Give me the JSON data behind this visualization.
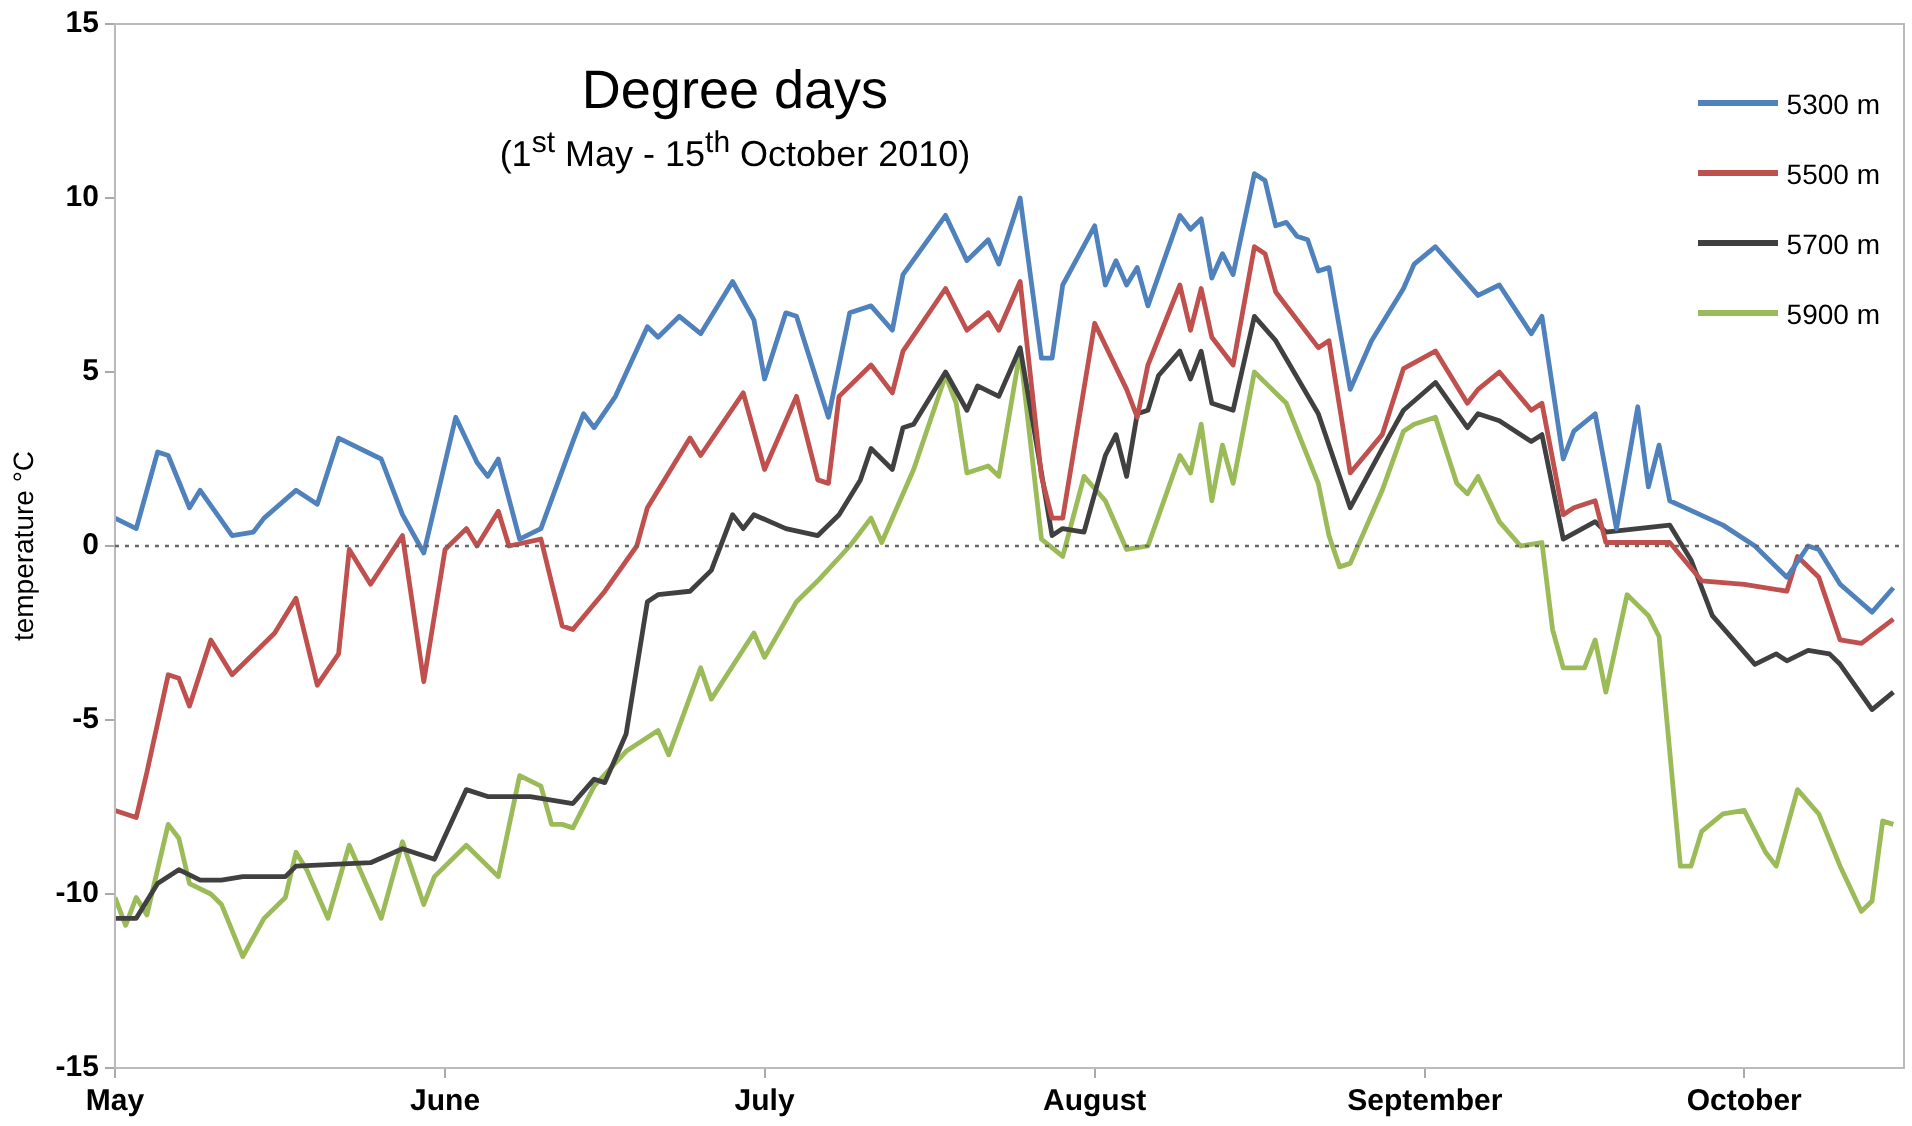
{
  "chart_data": {
    "type": "line",
    "title": "Degree days",
    "subtitle": "(1$^{st}$ May - 15$^{th}$ October 2010)",
    "ylabel": "temperature °C",
    "xlim": [
      "2010-05-01",
      "2010-10-16"
    ],
    "xticks": [
      {
        "value": "2010-05-01",
        "label": "May"
      },
      {
        "value": "2010-06-01",
        "label": "June"
      },
      {
        "value": "2010-07-01",
        "label": "July"
      },
      {
        "value": "2010-08-01",
        "label": "August"
      },
      {
        "value": "2010-09-01",
        "label": "September"
      },
      {
        "value": "2010-10-01",
        "label": "October"
      }
    ],
    "ylim": [
      -15,
      15
    ],
    "yticks": [
      -15,
      -10,
      -5,
      0,
      5,
      10,
      15
    ],
    "legend": "top right",
    "ref_lines": [
      {
        "axis": "y",
        "value": 0,
        "color": "#666666",
        "line_style": "dotted"
      }
    ],
    "series": [
      {
        "name": "5300 m",
        "color": "#4f81bd",
        "x": [
          "2010-05-01",
          "2010-05-03",
          "2010-05-05",
          "2010-05-06",
          "2010-05-08",
          "2010-05-09",
          "2010-05-12",
          "2010-05-14",
          "2010-05-15",
          "2010-05-18",
          "2010-05-20",
          "2010-05-22",
          "2010-05-26",
          "2010-05-28",
          "2010-05-30",
          "2010-06-02",
          "2010-06-04",
          "2010-06-05",
          "2010-06-06",
          "2010-06-08",
          "2010-06-10",
          "2010-06-13",
          "2010-06-14",
          "2010-06-15",
          "2010-06-17",
          "2010-06-20",
          "2010-06-21",
          "2010-06-23",
          "2010-06-25",
          "2010-06-28",
          "2010-06-30",
          "2010-07-01",
          "2010-07-03",
          "2010-07-04",
          "2010-07-07",
          "2010-07-09",
          "2010-07-11",
          "2010-07-13",
          "2010-07-14",
          "2010-07-18",
          "2010-07-20",
          "2010-07-22",
          "2010-07-23",
          "2010-07-25",
          "2010-07-27",
          "2010-07-28",
          "2010-07-29",
          "2010-08-01",
          "2010-08-02",
          "2010-08-03",
          "2010-08-04",
          "2010-08-05",
          "2010-08-06",
          "2010-08-09",
          "2010-08-10",
          "2010-08-11",
          "2010-08-12",
          "2010-08-13",
          "2010-08-14",
          "2010-08-16",
          "2010-08-17",
          "2010-08-18",
          "2010-08-19",
          "2010-08-20",
          "2010-08-21",
          "2010-08-22",
          "2010-08-23",
          "2010-08-25",
          "2010-08-27",
          "2010-08-30",
          "2010-08-31",
          "2010-09-02",
          "2010-09-06",
          "2010-09-08",
          "2010-09-11",
          "2010-09-12",
          "2010-09-14",
          "2010-09-15",
          "2010-09-17",
          "2010-09-19",
          "2010-09-21",
          "2010-09-22",
          "2010-09-23",
          "2010-09-24",
          "2010-09-29",
          "2010-10-02",
          "2010-10-05",
          "2010-10-07",
          "2010-10-08",
          "2010-10-10",
          "2010-10-13",
          "2010-10-15"
        ],
        "values": [
          0.8,
          0.5,
          2.7,
          2.6,
          1.1,
          1.6,
          0.3,
          0.4,
          0.8,
          1.6,
          1.2,
          3.1,
          2.5,
          0.9,
          -0.2,
          3.7,
          2.4,
          2.0,
          2.5,
          0.2,
          0.5,
          3.0,
          3.8,
          3.4,
          4.3,
          6.3,
          6.0,
          6.6,
          6.1,
          7.6,
          6.5,
          4.8,
          6.7,
          6.6,
          3.7,
          6.7,
          6.9,
          6.2,
          7.8,
          9.5,
          8.2,
          8.8,
          8.1,
          10.0,
          5.4,
          5.4,
          7.5,
          9.2,
          7.5,
          8.2,
          7.5,
          8.0,
          6.9,
          9.5,
          9.1,
          9.4,
          7.7,
          8.4,
          7.8,
          10.7,
          10.5,
          9.2,
          9.3,
          8.9,
          8.8,
          7.9,
          8.0,
          4.5,
          5.9,
          7.4,
          8.1,
          8.6,
          7.2,
          7.5,
          6.1,
          6.6,
          2.5,
          3.3,
          3.8,
          0.5,
          4.0,
          1.7,
          2.9,
          1.3,
          0.6,
          0,
          -0.9,
          0,
          -0.1,
          -1.1,
          -1.9,
          -1.2
        ]
      },
      {
        "name": "5500 m",
        "color": "#c0504d",
        "x": [
          "2010-05-01",
          "2010-05-03",
          "2010-05-04",
          "2010-05-06",
          "2010-05-07",
          "2010-05-08",
          "2010-05-10",
          "2010-05-12",
          "2010-05-15",
          "2010-05-16",
          "2010-05-18",
          "2010-05-20",
          "2010-05-22",
          "2010-05-23",
          "2010-05-25",
          "2010-05-28",
          "2010-05-30",
          "2010-06-01",
          "2010-06-03",
          "2010-06-04",
          "2010-06-06",
          "2010-06-07",
          "2010-06-10",
          "2010-06-12",
          "2010-06-13",
          "2010-06-16",
          "2010-06-19",
          "2010-06-20",
          "2010-06-24",
          "2010-06-25",
          "2010-06-29",
          "2010-07-01",
          "2010-07-04",
          "2010-07-06",
          "2010-07-07",
          "2010-07-08",
          "2010-07-11",
          "2010-07-13",
          "2010-07-14",
          "2010-07-18",
          "2010-07-20",
          "2010-07-22",
          "2010-07-23",
          "2010-07-25",
          "2010-07-27",
          "2010-07-28",
          "2010-07-29",
          "2010-08-01",
          "2010-08-04",
          "2010-08-05",
          "2010-08-06",
          "2010-08-09",
          "2010-08-10",
          "2010-08-11",
          "2010-08-12",
          "2010-08-14",
          "2010-08-16",
          "2010-08-17",
          "2010-08-18",
          "2010-08-22",
          "2010-08-23",
          "2010-08-25",
          "2010-08-28",
          "2010-08-30",
          "2010-09-02",
          "2010-09-05",
          "2010-09-06",
          "2010-09-08",
          "2010-09-11",
          "2010-09-12",
          "2010-09-14",
          "2010-09-15",
          "2010-09-17",
          "2010-09-18",
          "2010-09-24",
          "2010-09-27",
          "2010-10-01",
          "2010-10-05",
          "2010-10-06",
          "2010-10-08",
          "2010-10-10",
          "2010-10-12",
          "2010-10-15"
        ],
        "values": [
          -7.6,
          -7.8,
          -6.5,
          -3.7,
          -3.8,
          -4.6,
          -2.7,
          -3.7,
          -2.8,
          -2.5,
          -1.5,
          -4.0,
          -3.1,
          -0.1,
          -1.1,
          0.3,
          -3.9,
          -0.1,
          0.5,
          0,
          1.0,
          0,
          0.2,
          -2.3,
          -2.4,
          -1.3,
          0,
          1.1,
          3.1,
          2.6,
          4.4,
          2.2,
          4.3,
          1.9,
          1.8,
          4.3,
          5.2,
          4.4,
          5.6,
          7.4,
          6.2,
          6.7,
          6.2,
          7.6,
          2.0,
          0.8,
          0.8,
          6.4,
          4.5,
          3.7,
          5.2,
          7.5,
          6.2,
          7.4,
          6.0,
          5.2,
          8.6,
          8.4,
          7.3,
          5.7,
          5.9,
          2.1,
          3.2,
          5.1,
          5.6,
          4.1,
          4.5,
          5.0,
          3.9,
          4.1,
          0.9,
          1.1,
          1.3,
          0.1,
          0.1,
          -1.0,
          -1.1,
          -1.3,
          -0.3,
          -0.9,
          -2.7,
          -2.8,
          -2.1
        ]
      },
      {
        "name": "5700 m",
        "color": "#404040",
        "x": [
          "2010-05-01",
          "2010-05-03",
          "2010-05-05",
          "2010-05-07",
          "2010-05-09",
          "2010-05-11",
          "2010-05-13",
          "2010-05-17",
          "2010-05-18",
          "2010-05-25",
          "2010-05-28",
          "2010-05-31",
          "2010-06-03",
          "2010-06-05",
          "2010-06-09",
          "2010-06-13",
          "2010-06-15",
          "2010-06-16",
          "2010-06-18",
          "2010-06-20",
          "2010-06-21",
          "2010-06-24",
          "2010-06-26",
          "2010-06-28",
          "2010-06-29",
          "2010-06-30",
          "2010-07-03",
          "2010-07-06",
          "2010-07-08",
          "2010-07-10",
          "2010-07-11",
          "2010-07-13",
          "2010-07-14",
          "2010-07-15",
          "2010-07-18",
          "2010-07-20",
          "2010-07-21",
          "2010-07-23",
          "2010-07-25",
          "2010-07-28",
          "2010-07-29",
          "2010-07-31",
          "2010-08-02",
          "2010-08-03",
          "2010-08-04",
          "2010-08-05",
          "2010-08-06",
          "2010-08-07",
          "2010-08-09",
          "2010-08-10",
          "2010-08-11",
          "2010-08-12",
          "2010-08-14",
          "2010-08-16",
          "2010-08-18",
          "2010-08-22",
          "2010-08-25",
          "2010-08-28",
          "2010-08-30",
          "2010-09-02",
          "2010-09-05",
          "2010-09-06",
          "2010-09-08",
          "2010-09-11",
          "2010-09-12",
          "2010-09-14",
          "2010-09-17",
          "2010-09-18",
          "2010-09-24",
          "2010-09-26",
          "2010-09-28",
          "2010-10-02",
          "2010-10-04",
          "2010-10-05",
          "2010-10-07",
          "2010-10-09",
          "2010-10-10",
          "2010-10-13",
          "2010-10-15"
        ],
        "values": [
          -10.7,
          -10.7,
          -9.7,
          -9.3,
          -9.6,
          -9.6,
          -9.5,
          -9.5,
          -9.2,
          -9.1,
          -8.7,
          -9.0,
          -7.0,
          -7.2,
          -7.2,
          -7.4,
          -6.7,
          -6.8,
          -5.4,
          -1.6,
          -1.4,
          -1.3,
          -0.7,
          0.9,
          0.5,
          0.9,
          0.5,
          0.3,
          0.9,
          1.9,
          2.8,
          2.2,
          3.4,
          3.5,
          5.0,
          3.9,
          4.6,
          4.3,
          5.7,
          0.3,
          0.5,
          0.4,
          2.6,
          3.2,
          2.0,
          3.8,
          3.9,
          4.9,
          5.6,
          4.8,
          5.6,
          4.1,
          3.9,
          6.6,
          5.9,
          3.8,
          1.1,
          2.8,
          3.9,
          4.7,
          3.4,
          3.8,
          3.6,
          3.0,
          3.2,
          0.2,
          0.7,
          0.4,
          0.6,
          -0.4,
          -2.0,
          -3.4,
          -3.1,
          -3.3,
          -3.0,
          -3.1,
          -3.4,
          -4.7,
          -4.2
        ]
      },
      {
        "name": "5900 m",
        "color": "#9bbb59",
        "x": [
          "2010-05-01",
          "2010-05-02",
          "2010-05-03",
          "2010-05-04",
          "2010-05-06",
          "2010-05-07",
          "2010-05-08",
          "2010-05-10",
          "2010-05-11",
          "2010-05-13",
          "2010-05-15",
          "2010-05-17",
          "2010-05-18",
          "2010-05-19",
          "2010-05-21",
          "2010-05-23",
          "2010-05-26",
          "2010-05-28",
          "2010-05-30",
          "2010-05-31",
          "2010-06-03",
          "2010-06-06",
          "2010-06-08",
          "2010-06-10",
          "2010-06-11",
          "2010-06-12",
          "2010-06-13",
          "2010-06-15",
          "2010-06-18",
          "2010-06-21",
          "2010-06-22",
          "2010-06-25",
          "2010-06-26",
          "2010-06-30",
          "2010-07-01",
          "2010-07-04",
          "2010-07-06",
          "2010-07-09",
          "2010-07-11",
          "2010-07-12",
          "2010-07-15",
          "2010-07-18",
          "2010-07-19",
          "2010-07-20",
          "2010-07-22",
          "2010-07-23",
          "2010-07-25",
          "2010-07-27",
          "2010-07-29",
          "2010-07-31",
          "2010-08-02",
          "2010-08-04",
          "2010-08-06",
          "2010-08-09",
          "2010-08-10",
          "2010-08-11",
          "2010-08-12",
          "2010-08-13",
          "2010-08-14",
          "2010-08-16",
          "2010-08-19",
          "2010-08-22",
          "2010-08-23",
          "2010-08-24",
          "2010-08-25",
          "2010-08-28",
          "2010-08-30",
          "2010-08-31",
          "2010-09-02",
          "2010-09-04",
          "2010-09-05",
          "2010-09-06",
          "2010-09-08",
          "2010-09-10",
          "2010-09-12",
          "2010-09-13",
          "2010-09-14",
          "2010-09-16",
          "2010-09-17",
          "2010-09-18",
          "2010-09-20",
          "2010-09-22",
          "2010-09-23",
          "2010-09-24",
          "2010-09-25",
          "2010-09-26",
          "2010-09-27",
          "2010-09-29",
          "2010-10-01",
          "2010-10-03",
          "2010-10-04",
          "2010-10-06",
          "2010-10-08",
          "2010-10-10",
          "2010-10-12",
          "2010-10-13",
          "2010-10-14",
          "2010-10-15"
        ],
        "values": [
          -10.1,
          -10.9,
          -10.1,
          -10.6,
          -8.0,
          -8.4,
          -9.7,
          -10.0,
          -10.3,
          -11.8,
          -10.7,
          -10.1,
          -8.8,
          -9.3,
          -10.7,
          -8.6,
          -10.7,
          -8.5,
          -10.3,
          -9.5,
          -8.6,
          -9.5,
          -6.6,
          -6.9,
          -8.0,
          -8.0,
          -8.1,
          -6.9,
          -5.9,
          -5.3,
          -6.0,
          -3.5,
          -4.4,
          -2.5,
          -3.2,
          -1.6,
          -1.0,
          0,
          0.8,
          0.1,
          2.2,
          4.9,
          4.1,
          2.1,
          2.3,
          2.0,
          5.6,
          0.2,
          -0.3,
          2.0,
          1.3,
          -0.1,
          0,
          2.6,
          2.1,
          3.5,
          1.3,
          2.9,
          1.8,
          5.0,
          4.1,
          1.8,
          0.3,
          -0.6,
          -0.5,
          1.6,
          3.3,
          3.5,
          3.7,
          1.8,
          1.5,
          2.0,
          0.7,
          0,
          0.1,
          -2.4,
          -3.5,
          -3.5,
          -2.7,
          -4.2,
          -1.4,
          -2.0,
          -2.6,
          -5.9,
          -9.2,
          -9.2,
          -8.2,
          -7.7,
          -7.6,
          -8.8,
          -9.2,
          -7.0,
          -7.7,
          -9.2,
          -10.5,
          -10.2,
          -7.9,
          -8.0
        ]
      }
    ]
  }
}
